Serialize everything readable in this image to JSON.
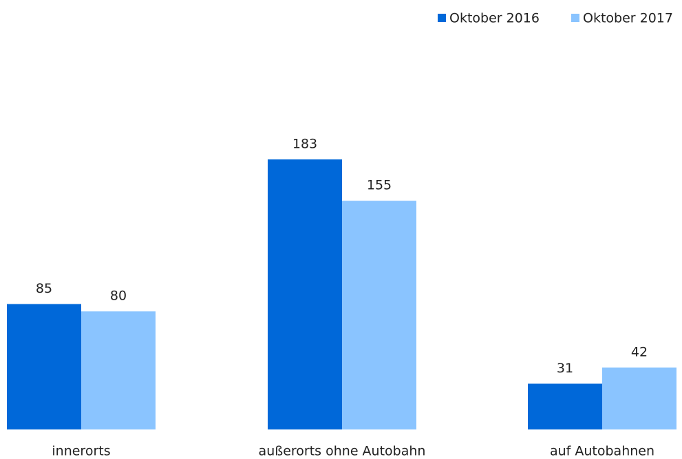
{
  "chart_data": {
    "type": "bar",
    "categories": [
      "innerorts",
      "außerorts ohne Autobahn",
      "auf Autobahnen"
    ],
    "series": [
      {
        "name": "Oktober 2016",
        "color": "#0068d9",
        "values": [
          85,
          183,
          31
        ]
      },
      {
        "name": "Oktober 2017",
        "color": "#8ac4ff",
        "values": [
          80,
          155,
          42
        ]
      }
    ],
    "legend": "top-right"
  }
}
